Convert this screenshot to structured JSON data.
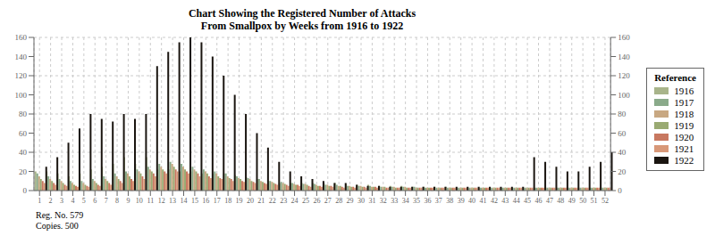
{
  "chart_data": {
    "type": "bar",
    "title": "Chart  Showing the Registered Number of Attacks",
    "subtitle": "From Smallpox by Weeks from 1916 to 1922",
    "categories": [
      "1",
      "2",
      "3",
      "4",
      "5",
      "6",
      "7",
      "8",
      "9",
      "10",
      "11",
      "12",
      "13",
      "14",
      "15",
      "16",
      "17",
      "18",
      "19",
      "20",
      "21",
      "22",
      "23",
      "24",
      "25",
      "26",
      "27",
      "28",
      "29",
      "30",
      "31",
      "32",
      "33",
      "34",
      "35",
      "36",
      "37",
      "38",
      "39",
      "40",
      "41",
      "42",
      "43",
      "44",
      "45",
      "46",
      "47",
      "48",
      "49",
      "50",
      "51",
      "52"
    ],
    "series": [
      {
        "name": "1916",
        "color": "#a8b48a",
        "values": [
          20,
          20,
          18,
          15,
          18,
          22,
          25,
          28,
          35,
          28,
          35,
          22,
          22,
          20,
          20,
          18,
          18,
          18,
          16,
          14,
          12,
          10,
          8,
          8,
          8,
          8,
          8,
          8,
          7,
          6,
          6,
          5,
          5,
          5,
          4,
          4,
          4,
          4,
          3,
          3,
          3,
          3,
          3,
          3,
          3,
          3,
          3,
          3,
          3,
          3,
          3,
          3
        ]
      },
      {
        "name": "1917",
        "color": "#8aaa8a",
        "values": [
          18,
          15,
          12,
          10,
          10,
          12,
          15,
          18,
          20,
          22,
          25,
          28,
          30,
          28,
          25,
          22,
          20,
          18,
          15,
          13,
          12,
          10,
          9,
          8,
          7,
          7,
          6,
          6,
          5,
          5,
          5,
          4,
          4,
          4,
          4,
          3,
          3,
          3,
          3,
          3,
          3,
          3,
          3,
          3,
          3,
          3,
          3,
          3,
          3,
          3,
          3,
          3
        ]
      },
      {
        "name": "1918",
        "color": "#c8a882",
        "values": [
          15,
          12,
          10,
          8,
          8,
          10,
          12,
          15,
          18,
          20,
          22,
          25,
          28,
          25,
          22,
          20,
          18,
          15,
          13,
          12,
          10,
          9,
          8,
          7,
          7,
          6,
          6,
          5,
          5,
          5,
          4,
          4,
          4,
          4,
          3,
          3,
          3,
          3,
          3,
          3,
          3,
          3,
          3,
          3,
          3,
          3,
          3,
          3,
          3,
          3,
          3,
          3
        ]
      },
      {
        "name": "1919",
        "color": "#9aaa72",
        "values": [
          12,
          10,
          8,
          6,
          6,
          8,
          10,
          12,
          15,
          18,
          20,
          22,
          25,
          22,
          20,
          18,
          15,
          13,
          12,
          10,
          9,
          8,
          7,
          6,
          6,
          5,
          5,
          5,
          4,
          4,
          4,
          4,
          3,
          3,
          3,
          3,
          3,
          3,
          3,
          3,
          3,
          3,
          3,
          3,
          3,
          3,
          3,
          3,
          3,
          3,
          3,
          3
        ]
      },
      {
        "name": "1920",
        "color": "#c87860",
        "values": [
          10,
          8,
          6,
          5,
          5,
          6,
          8,
          10,
          12,
          15,
          18,
          20,
          22,
          20,
          18,
          15,
          13,
          12,
          10,
          9,
          8,
          7,
          6,
          6,
          5,
          5,
          5,
          4,
          4,
          4,
          4,
          3,
          3,
          3,
          3,
          3,
          3,
          3,
          3,
          3,
          3,
          3,
          3,
          3,
          3,
          3,
          3,
          3,
          3,
          3,
          3,
          3
        ]
      },
      {
        "name": "1921",
        "color": "#d89878",
        "values": [
          8,
          6,
          5,
          4,
          4,
          5,
          6,
          8,
          10,
          12,
          15,
          18,
          20,
          18,
          15,
          13,
          12,
          10,
          9,
          8,
          7,
          6,
          5,
          5,
          4,
          4,
          4,
          3,
          3,
          3,
          3,
          3,
          3,
          3,
          3,
          3,
          3,
          3,
          3,
          3,
          3,
          3,
          3,
          3,
          3,
          3,
          3,
          3,
          3,
          3,
          3,
          3
        ]
      },
      {
        "name": "1922",
        "color": "#1a1510",
        "values": [
          25,
          35,
          50,
          65,
          80,
          75,
          72,
          80,
          75,
          80,
          130,
          145,
          155,
          160,
          155,
          140,
          120,
          100,
          80,
          60,
          45,
          30,
          20,
          15,
          12,
          10,
          8,
          8,
          6,
          5,
          5,
          4,
          4,
          4,
          4,
          4,
          4,
          4,
          4,
          4,
          4,
          4,
          4,
          4,
          35,
          30,
          25,
          20,
          20,
          25,
          30,
          40
        ]
      }
    ],
    "ylim": [
      0,
      160
    ],
    "yticks": [
      0,
      20,
      40,
      60,
      80,
      100,
      120,
      140,
      160
    ],
    "y2lim": [
      0,
      160
    ],
    "y2ticks": [
      0,
      20,
      40,
      60,
      80,
      100,
      120,
      140,
      160
    ],
    "grid": true,
    "legend": "right",
    "legend_title": "Reference",
    "annotations": [
      "Reg. No. 579",
      "Copies. 500"
    ]
  }
}
